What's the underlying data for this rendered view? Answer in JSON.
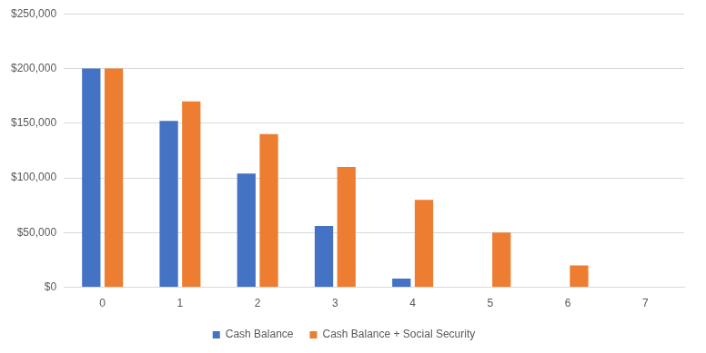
{
  "chart_data": {
    "type": "bar",
    "categories": [
      "0",
      "1",
      "2",
      "3",
      "4",
      "5",
      "6",
      "7"
    ],
    "series": [
      {
        "name": "Cash Balance",
        "color": "#4472c4",
        "values": [
          200000,
          152000,
          104000,
          56000,
          8000,
          null,
          null,
          null
        ]
      },
      {
        "name": "Cash Balance + Social Security",
        "color": "#ed7d31",
        "values": [
          200000,
          170000,
          140000,
          110000,
          80000,
          50000,
          20000,
          null
        ]
      }
    ],
    "ylim": [
      0,
      250000
    ],
    "yticks": [
      {
        "value": 0,
        "label": "$0"
      },
      {
        "value": 50000,
        "label": "$50,000"
      },
      {
        "value": 100000,
        "label": "$100,000"
      },
      {
        "value": 150000,
        "label": "$150,000"
      },
      {
        "value": 200000,
        "label": "$200,000"
      },
      {
        "value": 250000,
        "label": "$250,000"
      }
    ],
    "grid": true,
    "legend": "bottom"
  }
}
